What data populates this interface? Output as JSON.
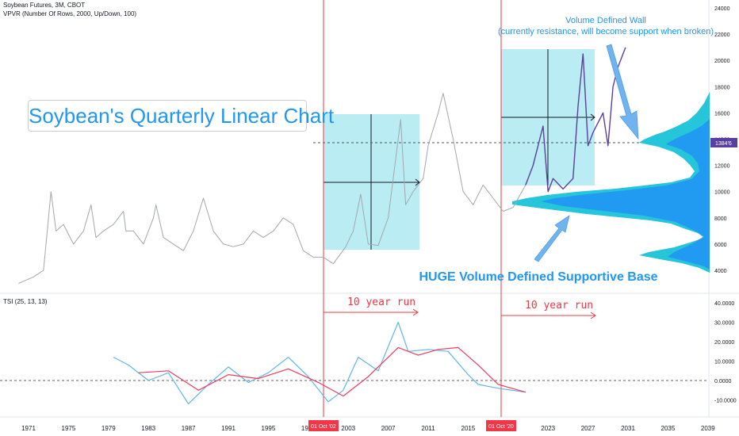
{
  "header": {
    "symbol_line": "Soybean Futures, 3M, CBOT",
    "indicator_line": "VPVR (Number Of Rows, 2000, Up/Down, 100)",
    "tsi_label": "TSI (25, 13, 13)"
  },
  "annotations": {
    "title": "Soybean's Quarterly Linear Chart",
    "wall_line1": "Volume Defined Wall",
    "wall_line2": "(currently resistance, will become support when broken)",
    "base_text": "HUGE Volume Defined Supportive Base",
    "run1": "10 year run",
    "run2": "10 year run"
  },
  "markers": {
    "date1": "01 Oct '02",
    "date2": "01 Oct '20",
    "price_tag": "1384'6"
  },
  "colors": {
    "price_line": "#a3a6af",
    "projection_line": "#5b3fa0",
    "box_fill": "#b2ebf2",
    "vpvr_light": "#26c6da",
    "vpvr_dark": "#2196f3",
    "tsi_line": "#5fb6e8",
    "tsi_signal": "#f23a5c",
    "marker_red": "#f23645",
    "price_tag_bg": "#5b3fa0"
  },
  "chart_data": [
    {
      "type": "line",
      "title": "Soybean Futures, 3M, CBOT",
      "y_scale": "linear",
      "ylim": [
        400,
        24000
      ],
      "y_ticks": [
        "4000",
        "6000",
        "8000",
        "10000",
        "12000",
        "14000",
        "16000",
        "18000",
        "20000",
        "22000",
        "24000"
      ],
      "x_ticks": [
        "1971",
        "1975",
        "1979",
        "1983",
        "1987",
        "1991",
        "1995",
        "1999",
        "2003",
        "2007",
        "2011",
        "2015",
        "2019",
        "2023",
        "2027",
        "2031",
        "2035",
        "2039"
      ],
      "series": [
        {
          "name": "Price",
          "x": [
            1970.0,
            1971.5,
            1972.5,
            1973.25,
            1973.75,
            1974.5,
            1975.5,
            1976.5,
            1977.25,
            1977.75,
            1978.5,
            1979.5,
            1980.5,
            1980.75,
            1981.5,
            1982.5,
            1983.5,
            1983.75,
            1984.5,
            1985.5,
            1986.5,
            1987.5,
            1988.5,
            1989.5,
            1990.5,
            1991.5,
            1992.5,
            1993.5,
            1994.5,
            1995.5,
            1996.5,
            1997.5,
            1998.5,
            1999.5,
            2000.5,
            2001.5,
            2002.75,
            2003.5,
            2004.25,
            2005.0,
            2006.0,
            2007.0,
            2007.5,
            2008.25,
            2008.75,
            2009.5,
            2010.5,
            2011.0,
            2012.0,
            2012.5,
            2013.5,
            2014.5,
            2015.5,
            2016.5,
            2017.5,
            2018.5,
            2019.5,
            2020.75
          ],
          "values": [
            3000,
            3500,
            4000,
            10000,
            7000,
            7500,
            6000,
            7000,
            9000,
            6500,
            7000,
            7500,
            8500,
            7000,
            7000,
            6000,
            8000,
            9000,
            6500,
            6000,
            5500,
            7000,
            9500,
            7000,
            6000,
            5800,
            6000,
            7000,
            6500,
            7000,
            8000,
            7500,
            5500,
            5000,
            5000,
            4500,
            5800,
            7000,
            9800,
            6000,
            5900,
            8000,
            11000,
            15500,
            9000,
            10000,
            11000,
            13500,
            16000,
            17500,
            14000,
            10000,
            9000,
            10500,
            9500,
            8500,
            8800,
            10500
          ]
        },
        {
          "name": "Projection",
          "x": [
            2020.75,
            2021.5,
            2022.5,
            2023.0,
            2023.5,
            2024.5,
            2025.5,
            2026.0,
            2026.5,
            2027.0,
            2027.5,
            2028.5,
            2029.0,
            2029.5,
            2030.0,
            2030.75
          ],
          "values": [
            10500,
            12000,
            15000,
            10000,
            11000,
            10200,
            11000,
            16500,
            20500,
            13500,
            14500,
            16000,
            13500,
            18000,
            19500,
            21000
          ]
        }
      ]
    },
    {
      "type": "line",
      "title": "TSI (25, 13, 13)",
      "ylim": [
        -15,
        40
      ],
      "y_ticks": [
        "40.0000",
        "30.0000",
        "20.0000",
        "10.0000",
        "0.0000",
        "-10.0000"
      ],
      "series": [
        {
          "name": "TSI",
          "x": [
            1979.5,
            1981,
            1983,
            1985,
            1987,
            1989,
            1991,
            1993,
            1995,
            1997,
            1999,
            2001,
            2002.5,
            2004,
            2006,
            2008,
            2009,
            2011,
            2013,
            2015,
            2016,
            2018,
            2020.75
          ],
          "values": [
            12,
            8,
            0,
            4,
            -12,
            -2,
            7,
            -1,
            4,
            12,
            2,
            -11,
            -5,
            12,
            5,
            30,
            15,
            16,
            15,
            3,
            -2,
            -4,
            -6
          ]
        },
        {
          "name": "Signal",
          "x": [
            1982,
            1985,
            1988,
            1991,
            1994,
            1997,
            2000,
            2002.5,
            2005,
            2008,
            2010,
            2012,
            2014,
            2016,
            2018,
            2020.75
          ],
          "values": [
            4,
            5,
            -5,
            3,
            1,
            6,
            -1,
            -8,
            2,
            17,
            13,
            16,
            17,
            8,
            -2,
            -6
          ]
        }
      ]
    }
  ]
}
